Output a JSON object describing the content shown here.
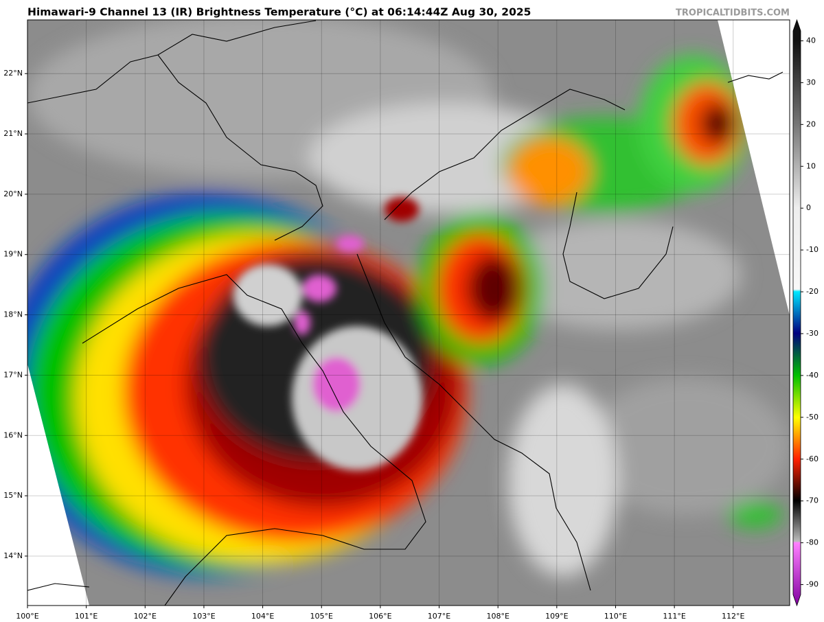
{
  "header": {
    "title": "Himawari-9 Channel 13 (IR) Brightness Temperature (°C) at 06:14:44Z Aug 30, 2025",
    "watermark": "TROPICALTIDBITS.COM"
  },
  "map": {
    "lon_range": [
      100,
      112.96
    ],
    "lat_range": [
      13.18,
      22.89
    ],
    "lon_ticks": [
      {
        "value": 100,
        "label": "100°E"
      },
      {
        "value": 101,
        "label": "101°E"
      },
      {
        "value": 102,
        "label": "102°E"
      },
      {
        "value": 103,
        "label": "103°E"
      },
      {
        "value": 104,
        "label": "104°E"
      },
      {
        "value": 105,
        "label": "105°E"
      },
      {
        "value": 106,
        "label": "106°E"
      },
      {
        "value": 107,
        "label": "107°E"
      },
      {
        "value": 108,
        "label": "108°E"
      },
      {
        "value": 109,
        "label": "109°E"
      },
      {
        "value": 110,
        "label": "110°E"
      },
      {
        "value": 111,
        "label": "111°E"
      },
      {
        "value": 112,
        "label": "112°E"
      }
    ],
    "lat_ticks": [
      {
        "value": 14,
        "label": "14°N"
      },
      {
        "value": 15,
        "label": "15°N"
      },
      {
        "value": 16,
        "label": "16°N"
      },
      {
        "value": 17,
        "label": "17°N"
      },
      {
        "value": 18,
        "label": "18°N"
      },
      {
        "value": 19,
        "label": "19°N"
      },
      {
        "value": 20,
        "label": "20°N"
      },
      {
        "value": 21,
        "label": "21°N"
      },
      {
        "value": 22,
        "label": "22°N"
      }
    ]
  },
  "colorbar": {
    "range": [
      -95,
      45
    ],
    "ticks": [
      40,
      30,
      20,
      10,
      0,
      -10,
      -20,
      -30,
      -40,
      -50,
      -60,
      -70,
      -80,
      -90
    ]
  }
}
